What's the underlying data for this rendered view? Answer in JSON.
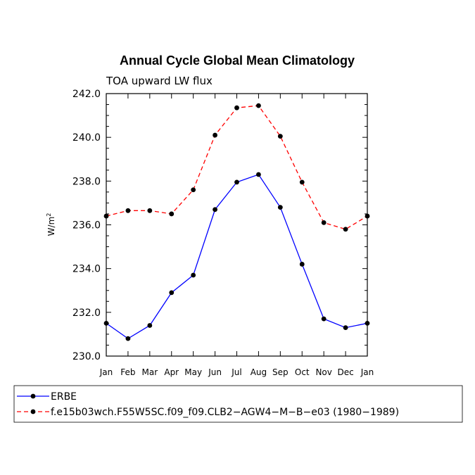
{
  "chart_data": {
    "type": "line",
    "title": "Annual Cycle Global Mean Climatology",
    "subtitle": "TOA upward LW flux",
    "ylabel": "W/m",
    "ylabel_sup": "2",
    "xlabel": "",
    "categories": [
      "Jan",
      "Feb",
      "Mar",
      "Apr",
      "May",
      "Jun",
      "Jul",
      "Aug",
      "Sep",
      "Oct",
      "Nov",
      "Dec",
      "Jan"
    ],
    "ylim": [
      230.0,
      242.0
    ],
    "yticks": [
      "230.0",
      "232.0",
      "234.0",
      "236.0",
      "238.0",
      "240.0",
      "242.0"
    ],
    "grid": false,
    "legend_position": "bottom",
    "series": [
      {
        "name": "ERBE",
        "color": "#0000ff",
        "dash": "solid",
        "values": [
          231.5,
          230.8,
          231.4,
          232.9,
          233.7,
          236.7,
          237.95,
          238.3,
          236.8,
          234.2,
          231.7,
          231.3,
          231.5
        ]
      },
      {
        "name": "f.e15b03wch.F55W5SC.f09_f09.CLB2−AGW4−M−B−e03 (1980−1989)",
        "color": "#ff0000",
        "dash": "dashed",
        "values": [
          236.4,
          236.65,
          236.65,
          236.5,
          237.6,
          240.1,
          241.35,
          241.45,
          240.05,
          237.95,
          236.1,
          235.8,
          236.4
        ]
      }
    ]
  }
}
